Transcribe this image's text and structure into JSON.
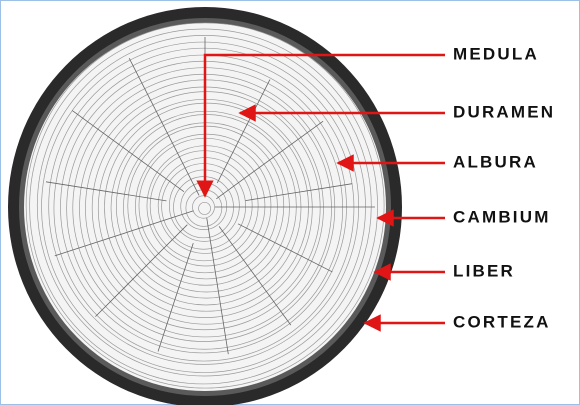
{
  "labels": [
    "MEDULA",
    "DURAMEN",
    "ALBURA",
    "CAMBIUM",
    "LIBER",
    "CORTEZA"
  ]
}
